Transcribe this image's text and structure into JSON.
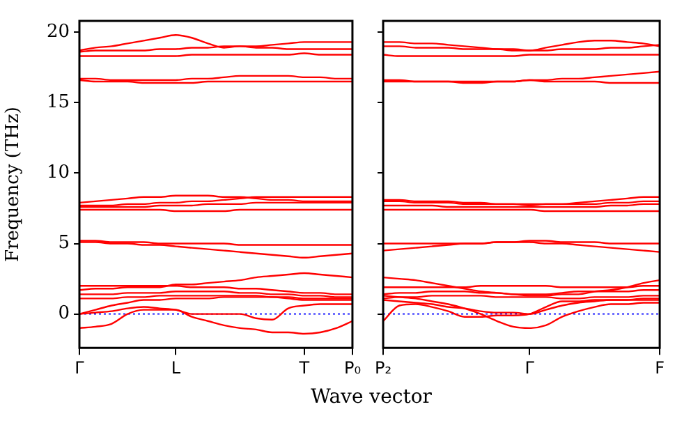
{
  "chart_data": [
    {
      "type": "line",
      "ylabel": "Frequency (THz)",
      "xlabel": "Wave vector",
      "marker": "none",
      "line_style": "solid",
      "grid": false,
      "legend": false,
      "ylim": [
        -2.4,
        20.8
      ],
      "yticks": [
        0,
        5,
        10,
        15,
        20
      ],
      "ref_lines": [
        {
          "axis": "y",
          "value": 0,
          "label": null,
          "color": "#0000ff",
          "line_style": "dotted"
        }
      ],
      "categories": [
        "Γ",
        null,
        null,
        null,
        null,
        null,
        "L",
        null,
        null,
        null,
        null,
        null,
        null,
        null,
        "T",
        null,
        null,
        "P₀"
      ],
      "series": [
        {
          "color": "#ff0000",
          "values": [
            18.7,
            18.9,
            19.0,
            19.2,
            19.4,
            19.6,
            19.8,
            19.6,
            19.2,
            18.9,
            19.0,
            19.0,
            19.1,
            19.2,
            19.3,
            19.3,
            19.3,
            19.3
          ]
        },
        {
          "color": "#ff0000",
          "values": [
            18.6,
            18.7,
            18.7,
            18.7,
            18.7,
            18.8,
            18.8,
            18.9,
            18.9,
            19.0,
            19.0,
            18.9,
            18.9,
            18.8,
            18.8,
            18.8,
            18.8,
            18.8
          ]
        },
        {
          "color": "#ff0000",
          "values": [
            18.3,
            18.3,
            18.3,
            18.3,
            18.3,
            18.3,
            18.3,
            18.4,
            18.4,
            18.4,
            18.4,
            18.4,
            18.4,
            18.4,
            18.5,
            18.4,
            18.4,
            18.4
          ]
        },
        {
          "color": "#ff0000",
          "values": [
            16.7,
            16.7,
            16.6,
            16.6,
            16.6,
            16.6,
            16.6,
            16.7,
            16.7,
            16.8,
            16.9,
            16.9,
            16.9,
            16.9,
            16.8,
            16.8,
            16.7,
            16.7
          ]
        },
        {
          "color": "#ff0000",
          "values": [
            16.6,
            16.5,
            16.5,
            16.5,
            16.4,
            16.4,
            16.4,
            16.4,
            16.5,
            16.5,
            16.5,
            16.5,
            16.5,
            16.5,
            16.5,
            16.5,
            16.5,
            16.5
          ]
        },
        {
          "color": "#ff0000",
          "values": [
            7.9,
            8.0,
            8.1,
            8.2,
            8.3,
            8.3,
            8.4,
            8.4,
            8.4,
            8.3,
            8.3,
            8.2,
            8.1,
            8.1,
            8.0,
            8.0,
            8.0,
            8.0
          ]
        },
        {
          "color": "#ff0000",
          "values": [
            7.7,
            7.7,
            7.7,
            7.8,
            7.8,
            7.9,
            7.9,
            8.0,
            8.0,
            8.1,
            8.2,
            8.3,
            8.3,
            8.3,
            8.3,
            8.3,
            8.3,
            8.3
          ]
        },
        {
          "color": "#ff0000",
          "values": [
            7.6,
            7.6,
            7.6,
            7.6,
            7.6,
            7.7,
            7.7,
            7.7,
            7.8,
            7.8,
            7.8,
            7.9,
            7.9,
            7.9,
            7.9,
            7.9,
            7.9,
            7.9
          ]
        },
        {
          "color": "#ff0000",
          "values": [
            7.4,
            7.4,
            7.4,
            7.4,
            7.4,
            7.4,
            7.3,
            7.3,
            7.3,
            7.3,
            7.4,
            7.4,
            7.4,
            7.4,
            7.4,
            7.4,
            7.4,
            7.4
          ]
        },
        {
          "color": "#ff0000",
          "values": [
            5.2,
            5.2,
            5.1,
            5.1,
            5.1,
            5.0,
            5.0,
            5.0,
            5.0,
            5.0,
            4.9,
            4.9,
            4.9,
            4.9,
            4.9,
            4.9,
            4.9,
            4.9
          ]
        },
        {
          "color": "#ff0000",
          "values": [
            5.1,
            5.1,
            5.0,
            5.0,
            4.9,
            4.9,
            4.8,
            4.7,
            4.6,
            4.5,
            4.4,
            4.3,
            4.2,
            4.1,
            4.0,
            4.1,
            4.2,
            4.3
          ]
        },
        {
          "color": "#ff0000",
          "values": [
            1.7,
            1.8,
            1.8,
            1.9,
            1.9,
            1.9,
            2.1,
            2.1,
            2.2,
            2.3,
            2.4,
            2.6,
            2.7,
            2.8,
            2.9,
            2.8,
            2.7,
            2.6
          ]
        },
        {
          "color": "#ff0000",
          "values": [
            2.0,
            2.0,
            2.0,
            2.0,
            2.0,
            2.0,
            2.0,
            1.9,
            1.9,
            1.9,
            1.8,
            1.8,
            1.7,
            1.6,
            1.5,
            1.5,
            1.4,
            1.4
          ]
        },
        {
          "color": "#ff0000",
          "values": [
            1.4,
            1.4,
            1.4,
            1.5,
            1.5,
            1.5,
            1.6,
            1.6,
            1.6,
            1.6,
            1.5,
            1.5,
            1.4,
            1.4,
            1.3,
            1.3,
            1.2,
            1.2
          ]
        },
        {
          "color": "#ff0000",
          "values": [
            1.1,
            1.1,
            1.1,
            1.2,
            1.2,
            1.3,
            1.3,
            1.3,
            1.3,
            1.3,
            1.3,
            1.3,
            1.2,
            1.2,
            1.1,
            1.1,
            1.1,
            1.1
          ]
        },
        {
          "color": "#ff0000",
          "values": [
            -1.0,
            -0.9,
            -0.7,
            0.0,
            0.3,
            0.3,
            0.3,
            -0.2,
            -0.5,
            -0.8,
            -1.0,
            -1.1,
            -1.3,
            -1.3,
            -1.4,
            -1.3,
            -1.0,
            -0.5
          ]
        },
        {
          "color": "#ff0000",
          "values": [
            0.0,
            0.1,
            0.2,
            0.4,
            0.5,
            0.4,
            0.3,
            0.0,
            0.0,
            0.0,
            0.0,
            -0.3,
            -0.4,
            0.4,
            0.6,
            0.7,
            0.7,
            0.7
          ]
        },
        {
          "color": "#ff0000",
          "values": [
            0.0,
            0.3,
            0.6,
            0.8,
            1.0,
            1.0,
            1.1,
            1.1,
            1.1,
            1.2,
            1.2,
            1.2,
            1.2,
            1.1,
            1.0,
            1.0,
            1.0,
            1.0
          ]
        }
      ]
    },
    {
      "type": "line",
      "marker": "none",
      "line_style": "solid",
      "grid": false,
      "legend": false,
      "tick_labels": "x",
      "ylim": [
        -2.4,
        20.8
      ],
      "yticks": [
        0,
        5,
        10,
        15,
        20
      ],
      "ref_lines": [
        {
          "axis": "y",
          "value": 0,
          "label": null,
          "color": "#0000ff",
          "line_style": "dotted"
        }
      ],
      "categories": [
        "P₂",
        null,
        null,
        null,
        null,
        null,
        null,
        null,
        null,
        "Γ",
        null,
        null,
        null,
        null,
        null,
        null,
        null,
        "F"
      ],
      "series": [
        {
          "color": "#ff0000",
          "values": [
            19.3,
            19.3,
            19.2,
            19.2,
            19.1,
            19.0,
            18.9,
            18.8,
            18.8,
            18.7,
            18.9,
            19.1,
            19.3,
            19.4,
            19.4,
            19.3,
            19.2,
            19.0
          ]
        },
        {
          "color": "#ff0000",
          "values": [
            19.0,
            19.0,
            18.9,
            18.9,
            18.9,
            18.8,
            18.8,
            18.8,
            18.7,
            18.7,
            18.7,
            18.8,
            18.8,
            18.8,
            18.9,
            18.9,
            19.0,
            19.1
          ]
        },
        {
          "color": "#ff0000",
          "values": [
            18.4,
            18.3,
            18.3,
            18.3,
            18.3,
            18.3,
            18.3,
            18.3,
            18.3,
            18.4,
            18.4,
            18.4,
            18.4,
            18.4,
            18.4,
            18.4,
            18.4,
            18.4
          ]
        },
        {
          "color": "#ff0000",
          "values": [
            16.6,
            16.6,
            16.5,
            16.5,
            16.5,
            16.5,
            16.5,
            16.5,
            16.5,
            16.6,
            16.6,
            16.7,
            16.7,
            16.8,
            16.9,
            17.0,
            17.1,
            17.2
          ]
        },
        {
          "color": "#ff0000",
          "values": [
            16.5,
            16.5,
            16.5,
            16.5,
            16.5,
            16.4,
            16.4,
            16.5,
            16.5,
            16.6,
            16.5,
            16.5,
            16.5,
            16.5,
            16.4,
            16.4,
            16.4,
            16.4
          ]
        },
        {
          "color": "#ff0000",
          "values": [
            8.1,
            8.1,
            8.0,
            8.0,
            8.0,
            7.9,
            7.9,
            7.8,
            7.8,
            7.7,
            7.8,
            7.8,
            7.9,
            8.0,
            8.1,
            8.2,
            8.3,
            8.3
          ]
        },
        {
          "color": "#ff0000",
          "values": [
            8.0,
            8.0,
            7.9,
            7.9,
            7.9,
            7.8,
            7.8,
            7.8,
            7.8,
            7.8,
            7.8,
            7.8,
            7.8,
            7.8,
            7.9,
            7.9,
            8.0,
            8.0
          ]
        },
        {
          "color": "#ff0000",
          "values": [
            7.7,
            7.7,
            7.7,
            7.7,
            7.6,
            7.6,
            7.6,
            7.6,
            7.6,
            7.6,
            7.6,
            7.6,
            7.6,
            7.6,
            7.7,
            7.7,
            7.8,
            7.8
          ]
        },
        {
          "color": "#ff0000",
          "values": [
            7.4,
            7.4,
            7.4,
            7.4,
            7.4,
            7.4,
            7.4,
            7.4,
            7.4,
            7.4,
            7.3,
            7.3,
            7.3,
            7.3,
            7.3,
            7.3,
            7.3,
            7.3
          ]
        },
        {
          "color": "#ff0000",
          "values": [
            4.5,
            4.6,
            4.7,
            4.8,
            4.9,
            5.0,
            5.0,
            5.1,
            5.1,
            5.2,
            5.2,
            5.1,
            5.1,
            5.1,
            5.0,
            5.0,
            5.0,
            5.0
          ]
        },
        {
          "color": "#ff0000",
          "values": [
            5.0,
            5.0,
            5.0,
            5.0,
            5.0,
            5.0,
            5.0,
            5.1,
            5.1,
            5.1,
            5.0,
            5.0,
            4.9,
            4.8,
            4.7,
            4.6,
            4.5,
            4.4
          ]
        },
        {
          "color": "#ff0000",
          "values": [
            2.6,
            2.5,
            2.4,
            2.2,
            2.0,
            1.8,
            1.6,
            1.5,
            1.4,
            1.3,
            1.3,
            1.4,
            1.4,
            1.6,
            1.7,
            1.9,
            2.2,
            2.4
          ]
        },
        {
          "color": "#ff0000",
          "values": [
            1.9,
            1.9,
            1.9,
            1.9,
            1.9,
            1.9,
            2.0,
            2.0,
            2.0,
            2.0,
            2.0,
            1.9,
            1.9,
            1.9,
            1.9,
            1.9,
            2.0,
            2.0
          ]
        },
        {
          "color": "#ff0000",
          "values": [
            1.4,
            1.5,
            1.5,
            1.6,
            1.6,
            1.6,
            1.5,
            1.5,
            1.4,
            1.4,
            1.4,
            1.5,
            1.6,
            1.6,
            1.6,
            1.6,
            1.7,
            1.7
          ]
        },
        {
          "color": "#ff0000",
          "values": [
            1.1,
            1.2,
            1.2,
            1.3,
            1.3,
            1.3,
            1.3,
            1.2,
            1.2,
            1.2,
            1.2,
            1.1,
            1.1,
            1.2,
            1.2,
            1.2,
            1.3,
            1.3
          ]
        },
        {
          "color": "#ff0000",
          "values": [
            -0.5,
            0.6,
            0.7,
            0.5,
            0.2,
            -0.2,
            -0.2,
            -0.1,
            -0.1,
            0.0,
            0.5,
            0.9,
            0.9,
            1.0,
            1.0,
            1.0,
            1.0,
            1.0
          ]
        },
        {
          "color": "#ff0000",
          "values": [
            1.3,
            1.2,
            1.1,
            0.9,
            0.7,
            0.4,
            0.0,
            -0.5,
            -0.9,
            -1.0,
            -0.8,
            -0.2,
            0.2,
            0.5,
            0.7,
            0.7,
            0.8,
            0.8
          ]
        },
        {
          "color": "#ff0000",
          "values": [
            1.0,
            0.9,
            0.8,
            0.7,
            0.5,
            0.4,
            0.2,
            0.1,
            0.1,
            0.0,
            0.3,
            0.6,
            0.8,
            0.9,
            1.0,
            1.0,
            1.1,
            1.1
          ]
        }
      ]
    }
  ]
}
